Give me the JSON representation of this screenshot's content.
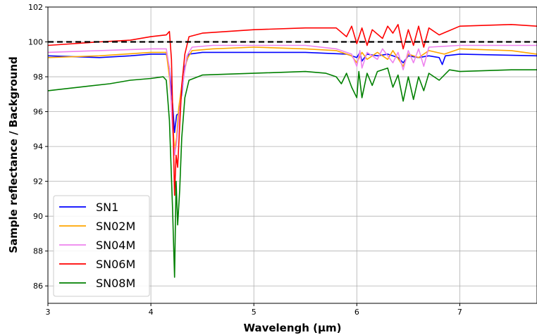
{
  "chart_data": {
    "type": "line",
    "title": "",
    "xlabel": "Wavelengh (µm)",
    "ylabel": "Sample reflectance / Background",
    "xlim": [
      3.0,
      7.75
    ],
    "ylim": [
      85.0,
      102.0
    ],
    "xticks": [
      3,
      4,
      5,
      6,
      7
    ],
    "yticks": [
      86,
      88,
      90,
      92,
      94,
      96,
      98,
      100,
      102
    ],
    "grid": true,
    "legend_position": "lower-left",
    "reference_line": {
      "y": 100,
      "color": "#000000",
      "style": "dashed"
    },
    "series": [
      {
        "name": "SN1",
        "color": "#0000ff",
        "points": [
          [
            3.0,
            99.2
          ],
          [
            3.5,
            99.1
          ],
          [
            3.8,
            99.2
          ],
          [
            4.0,
            99.3
          ],
          [
            4.15,
            99.3
          ],
          [
            4.18,
            98.5
          ],
          [
            4.21,
            96.5
          ],
          [
            4.23,
            94.8
          ],
          [
            4.25,
            95.8
          ],
          [
            4.27,
            95.9
          ],
          [
            4.3,
            97.0
          ],
          [
            4.33,
            98.6
          ],
          [
            4.37,
            99.3
          ],
          [
            4.5,
            99.4
          ],
          [
            5.0,
            99.4
          ],
          [
            5.5,
            99.4
          ],
          [
            5.9,
            99.3
          ],
          [
            6.0,
            99.1
          ],
          [
            6.03,
            99.4
          ],
          [
            6.05,
            98.9
          ],
          [
            6.1,
            99.3
          ],
          [
            6.2,
            99.2
          ],
          [
            6.3,
            99.3
          ],
          [
            6.4,
            99.1
          ],
          [
            6.45,
            98.8
          ],
          [
            6.5,
            99.2
          ],
          [
            6.6,
            99.1
          ],
          [
            6.7,
            99.2
          ],
          [
            6.8,
            99.1
          ],
          [
            6.83,
            98.7
          ],
          [
            6.86,
            99.2
          ],
          [
            7.0,
            99.3
          ],
          [
            7.75,
            99.2
          ]
        ]
      },
      {
        "name": "SN02M",
        "color": "#ffa500",
        "points": [
          [
            3.0,
            99.1
          ],
          [
            3.5,
            99.2
          ],
          [
            4.0,
            99.4
          ],
          [
            4.15,
            99.4
          ],
          [
            4.18,
            98.0
          ],
          [
            4.21,
            95.5
          ],
          [
            4.23,
            93.8
          ],
          [
            4.25,
            94.5
          ],
          [
            4.27,
            96.2
          ],
          [
            4.3,
            97.5
          ],
          [
            4.35,
            99.0
          ],
          [
            4.4,
            99.5
          ],
          [
            4.6,
            99.6
          ],
          [
            5.0,
            99.7
          ],
          [
            5.5,
            99.6
          ],
          [
            5.8,
            99.5
          ],
          [
            5.95,
            99.2
          ],
          [
            6.0,
            98.8
          ],
          [
            6.05,
            99.4
          ],
          [
            6.1,
            99.0
          ],
          [
            6.2,
            99.4
          ],
          [
            6.3,
            99.0
          ],
          [
            6.35,
            99.5
          ],
          [
            6.45,
            98.6
          ],
          [
            6.5,
            99.3
          ],
          [
            6.6,
            99.1
          ],
          [
            6.7,
            99.5
          ],
          [
            6.85,
            99.3
          ],
          [
            7.0,
            99.6
          ],
          [
            7.5,
            99.5
          ],
          [
            7.75,
            99.3
          ]
        ]
      },
      {
        "name": "SN04M",
        "color": "#ee82ee",
        "points": [
          [
            3.0,
            99.4
          ],
          [
            3.5,
            99.5
          ],
          [
            4.0,
            99.6
          ],
          [
            4.15,
            99.6
          ],
          [
            4.18,
            98.5
          ],
          [
            4.21,
            95.0
          ],
          [
            4.23,
            93.5
          ],
          [
            4.25,
            94.2
          ],
          [
            4.27,
            95.5
          ],
          [
            4.3,
            97.2
          ],
          [
            4.35,
            99.2
          ],
          [
            4.4,
            99.7
          ],
          [
            4.6,
            99.8
          ],
          [
            5.0,
            99.8
          ],
          [
            5.5,
            99.8
          ],
          [
            5.8,
            99.6
          ],
          [
            5.95,
            99.3
          ],
          [
            6.0,
            98.6
          ],
          [
            6.03,
            99.5
          ],
          [
            6.05,
            98.5
          ],
          [
            6.1,
            99.4
          ],
          [
            6.2,
            99.0
          ],
          [
            6.25,
            99.6
          ],
          [
            6.35,
            98.8
          ],
          [
            6.4,
            99.4
          ],
          [
            6.45,
            98.4
          ],
          [
            6.5,
            99.5
          ],
          [
            6.55,
            98.8
          ],
          [
            6.6,
            99.6
          ],
          [
            6.65,
            98.6
          ],
          [
            6.7,
            99.7
          ],
          [
            7.0,
            99.8
          ],
          [
            7.75,
            99.8
          ]
        ]
      },
      {
        "name": "SN06M",
        "color": "#ff0000",
        "points": [
          [
            3.0,
            99.8
          ],
          [
            3.5,
            100.0
          ],
          [
            3.8,
            100.1
          ],
          [
            4.0,
            100.3
          ],
          [
            4.15,
            100.4
          ],
          [
            4.18,
            100.6
          ],
          [
            4.2,
            99.0
          ],
          [
            4.22,
            94.0
          ],
          [
            4.23,
            91.2
          ],
          [
            4.245,
            93.5
          ],
          [
            4.26,
            92.8
          ],
          [
            4.28,
            95.2
          ],
          [
            4.3,
            97.5
          ],
          [
            4.33,
            99.3
          ],
          [
            4.37,
            100.3
          ],
          [
            4.5,
            100.5
          ],
          [
            5.0,
            100.7
          ],
          [
            5.5,
            100.8
          ],
          [
            5.8,
            100.8
          ],
          [
            5.9,
            100.3
          ],
          [
            5.95,
            100.9
          ],
          [
            6.0,
            99.9
          ],
          [
            6.05,
            100.8
          ],
          [
            6.1,
            99.8
          ],
          [
            6.15,
            100.7
          ],
          [
            6.25,
            100.2
          ],
          [
            6.3,
            100.9
          ],
          [
            6.35,
            100.5
          ],
          [
            6.4,
            101.0
          ],
          [
            6.45,
            99.6
          ],
          [
            6.5,
            100.7
          ],
          [
            6.55,
            99.8
          ],
          [
            6.6,
            100.9
          ],
          [
            6.65,
            99.7
          ],
          [
            6.7,
            100.8
          ],
          [
            6.8,
            100.4
          ],
          [
            7.0,
            100.9
          ],
          [
            7.5,
            101.0
          ],
          [
            7.75,
            100.9
          ]
        ]
      },
      {
        "name": "SN08M",
        "color": "#008000",
        "points": [
          [
            3.0,
            97.2
          ],
          [
            3.3,
            97.4
          ],
          [
            3.6,
            97.6
          ],
          [
            3.8,
            97.8
          ],
          [
            4.0,
            97.9
          ],
          [
            4.12,
            98.0
          ],
          [
            4.15,
            97.8
          ],
          [
            4.18,
            95.5
          ],
          [
            4.21,
            90.5
          ],
          [
            4.23,
            86.5
          ],
          [
            4.245,
            92.0
          ],
          [
            4.26,
            89.5
          ],
          [
            4.28,
            91.5
          ],
          [
            4.3,
            94.5
          ],
          [
            4.33,
            96.8
          ],
          [
            4.37,
            97.8
          ],
          [
            4.5,
            98.1
          ],
          [
            5.0,
            98.2
          ],
          [
            5.5,
            98.3
          ],
          [
            5.7,
            98.2
          ],
          [
            5.8,
            98.0
          ],
          [
            5.85,
            97.6
          ],
          [
            5.9,
            98.2
          ],
          [
            5.95,
            97.4
          ],
          [
            6.0,
            96.8
          ],
          [
            6.02,
            98.3
          ],
          [
            6.05,
            96.8
          ],
          [
            6.1,
            98.2
          ],
          [
            6.15,
            97.5
          ],
          [
            6.2,
            98.3
          ],
          [
            6.3,
            98.5
          ],
          [
            6.35,
            97.4
          ],
          [
            6.4,
            98.1
          ],
          [
            6.45,
            96.6
          ],
          [
            6.5,
            98.0
          ],
          [
            6.55,
            96.7
          ],
          [
            6.6,
            98.0
          ],
          [
            6.65,
            97.2
          ],
          [
            6.7,
            98.2
          ],
          [
            6.8,
            97.8
          ],
          [
            6.9,
            98.4
          ],
          [
            7.0,
            98.3
          ],
          [
            7.5,
            98.4
          ],
          [
            7.75,
            98.4
          ]
        ]
      }
    ]
  }
}
